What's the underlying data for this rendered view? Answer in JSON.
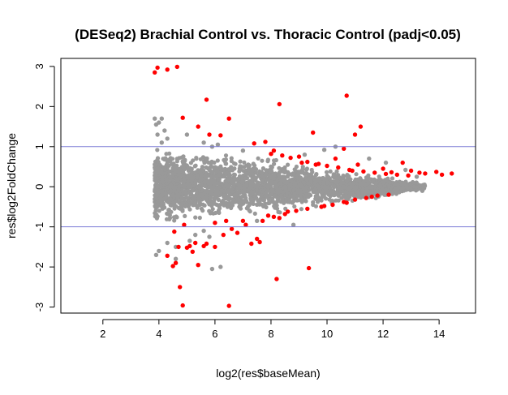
{
  "chart_data": {
    "type": "scatter",
    "title": "(DESeq2) Brachial Control vs. Thoracic Control (padj<0.05)",
    "xlabel": "log2(res$baseMean)",
    "ylabel": "res$log2FoldChange",
    "xlim": [
      0.5,
      15.3
    ],
    "ylim": [
      -3.15,
      3.2
    ],
    "xticks": [
      "2",
      "4",
      "6",
      "8",
      "10",
      "12",
      "14"
    ],
    "xtick_values": [
      2,
      4,
      6,
      8,
      10,
      12,
      14
    ],
    "yticks": [
      "-3",
      "-2",
      "-1",
      "0",
      "1",
      "2",
      "3"
    ],
    "ytick_values": [
      -3,
      -2,
      -1,
      0,
      1,
      2,
      3
    ],
    "hlines": [
      1,
      -1
    ],
    "grid": false,
    "colors": {
      "nonsignificant": "#999999",
      "significant": "#ff0000",
      "reference_lines": "#7b7bd6",
      "axes": "#000000"
    },
    "series": [
      {
        "name": "",
        "color": "#999999",
        "points": [
          [
            3.9,
            1.55
          ],
          [
            4.0,
            1.6
          ],
          [
            4.1,
            1.7
          ],
          [
            3.95,
            1.3
          ],
          [
            4.2,
            1.4
          ],
          [
            4.3,
            1.2
          ],
          [
            5.0,
            1.3
          ],
          [
            5.6,
            1.1
          ],
          [
            6.1,
            1.05
          ],
          [
            5.9,
            1.0
          ],
          [
            5.3,
            -1.2
          ],
          [
            5.6,
            -1.1
          ],
          [
            5.8,
            -1.25
          ],
          [
            6.2,
            -2.0
          ],
          [
            5.9,
            -2.05
          ],
          [
            9.9,
            0.92
          ],
          [
            10.3,
            1.0
          ],
          [
            11.5,
            0.7
          ],
          [
            12.1,
            0.6
          ],
          [
            12.8,
            0.42
          ],
          [
            13.2,
            0.25
          ],
          [
            13.4,
            -0.1
          ],
          [
            3.9,
            -1.7
          ],
          [
            4.0,
            -1.6
          ],
          [
            4.3,
            -1.4
          ],
          [
            4.6,
            -1.5
          ],
          [
            4.1,
            1.1
          ],
          [
            7.0,
            0.9
          ],
          [
            7.5,
            -0.85
          ],
          [
            3.85,
            1.7
          ],
          [
            4.6,
            -1.8
          ],
          [
            5.1,
            -1.35
          ],
          [
            8.8,
            -0.95
          ],
          [
            9.2,
            0.8
          ]
        ]
      },
      {
        "name": "",
        "color": "#ff0000",
        "points": [
          [
            3.85,
            2.85
          ],
          [
            3.95,
            2.97
          ],
          [
            4.3,
            2.92
          ],
          [
            4.65,
            2.99
          ],
          [
            5.7,
            2.17
          ],
          [
            8.3,
            2.06
          ],
          [
            10.7,
            2.27
          ],
          [
            11.2,
            1.5
          ],
          [
            4.85,
            1.72
          ],
          [
            5.4,
            1.5
          ],
          [
            6.5,
            1.7
          ],
          [
            5.8,
            1.3
          ],
          [
            6.2,
            1.28
          ],
          [
            7.4,
            1.08
          ],
          [
            7.8,
            1.12
          ],
          [
            9.5,
            1.35
          ],
          [
            10.6,
            0.95
          ],
          [
            11.0,
            1.3
          ],
          [
            12.7,
            0.6
          ],
          [
            13.3,
            0.35
          ],
          [
            13.9,
            0.37
          ],
          [
            14.1,
            0.3
          ],
          [
            14.45,
            0.33
          ],
          [
            8.2,
            -2.3
          ],
          [
            9.35,
            -2.03
          ],
          [
            6.5,
            -2.97
          ],
          [
            4.85,
            -2.96
          ],
          [
            4.75,
            -2.5
          ],
          [
            4.5,
            -1.98
          ],
          [
            4.3,
            -1.72
          ],
          [
            4.7,
            -1.5
          ],
          [
            5.0,
            -1.52
          ],
          [
            5.2,
            -1.62
          ],
          [
            5.4,
            -1.95
          ],
          [
            5.7,
            -1.42
          ],
          [
            6.0,
            -1.5
          ],
          [
            6.3,
            -1.2
          ],
          [
            6.8,
            -1.15
          ],
          [
            7.1,
            -0.95
          ],
          [
            7.3,
            -1.42
          ],
          [
            7.6,
            -1.38
          ],
          [
            8.1,
            -0.75
          ],
          [
            8.5,
            -0.68
          ],
          [
            8.9,
            -0.6
          ],
          [
            9.3,
            -0.55
          ],
          [
            9.8,
            -0.5
          ],
          [
            10.2,
            -0.45
          ],
          [
            10.6,
            -0.38
          ],
          [
            11.0,
            -0.32
          ],
          [
            11.4,
            -0.28
          ],
          [
            11.8,
            -0.22
          ],
          [
            8.0,
            0.82
          ],
          [
            8.4,
            0.78
          ],
          [
            8.7,
            0.72
          ],
          [
            9.1,
            0.6
          ],
          [
            9.6,
            0.55
          ],
          [
            10.0,
            0.52
          ],
          [
            10.4,
            0.48
          ],
          [
            10.8,
            0.42
          ],
          [
            11.3,
            0.38
          ],
          [
            11.7,
            0.35
          ],
          [
            12.1,
            0.32
          ],
          [
            12.5,
            0.3
          ],
          [
            12.9,
            0.28
          ],
          [
            9.3,
            0.62
          ],
          [
            9.7,
            0.57
          ],
          [
            10.9,
            0.4
          ],
          [
            12.3,
            0.36
          ],
          [
            8.6,
            -0.62
          ],
          [
            7.9,
            -0.72
          ],
          [
            7.5,
            -1.3
          ],
          [
            7.0,
            -0.85
          ],
          [
            6.6,
            -1.05
          ],
          [
            5.6,
            -1.48
          ],
          [
            5.1,
            -1.48
          ],
          [
            4.6,
            -1.9
          ],
          [
            4.55,
            -1.12
          ],
          [
            4.9,
            -0.95
          ],
          [
            6.0,
            -0.9
          ],
          [
            6.4,
            -0.85
          ],
          [
            10.3,
            0.7
          ],
          [
            11.1,
            0.55
          ],
          [
            12.0,
            0.45
          ],
          [
            13.0,
            0.4
          ],
          [
            13.5,
            0.33
          ],
          [
            8.1,
            0.9
          ],
          [
            9.0,
            0.75
          ],
          [
            9.9,
            -0.48
          ],
          [
            10.7,
            -0.4
          ],
          [
            11.6,
            -0.25
          ],
          [
            12.2,
            -0.2
          ],
          [
            7.7,
            -0.85
          ],
          [
            8.3,
            -0.78
          ],
          [
            5.3,
            -1.4
          ]
        ]
      }
    ],
    "cloud": {
      "color": "#999999",
      "x_range": [
        3.85,
        13.5
      ],
      "halfwidth_at_x": [
        [
          3.85,
          1.1
        ],
        [
          5.0,
          0.95
        ],
        [
          6.5,
          0.85
        ],
        [
          8.0,
          0.75
        ],
        [
          9.5,
          0.55
        ],
        [
          11.0,
          0.4
        ],
        [
          12.5,
          0.22
        ],
        [
          13.5,
          0.08
        ]
      ]
    }
  }
}
